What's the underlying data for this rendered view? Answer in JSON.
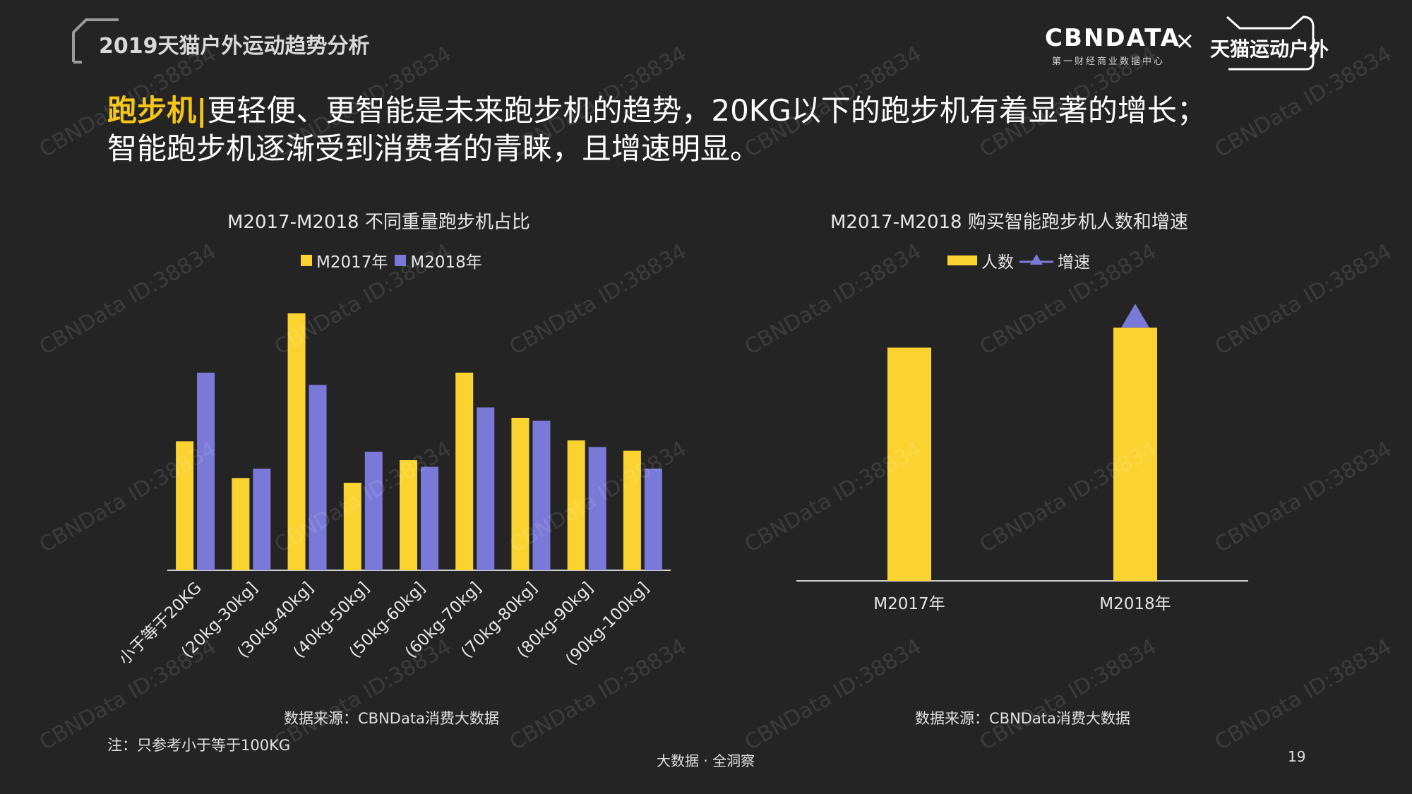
{
  "header": {
    "report_title": "2019天猫户外运动趋势分析",
    "headline_keyword": "跑步机|",
    "headline_line1": "更轻便、更智能是未来跑步机的趋势，20KG以下的跑步机有着显著的增长；",
    "headline_line2": "智能跑步机逐渐受到消费者的青睐，且增速明显。",
    "logo_cbn": "CBNDATA",
    "logo_cbn_sub": "第一财经商业数据中心",
    "logo_separator": "×",
    "logo_tmall": "天猫运动户外"
  },
  "colors": {
    "yellow": "#FBD331",
    "purple": "#7B79D8",
    "accent_keyword": "#f5c518",
    "axis": "#cfcfcf"
  },
  "chart_data": [
    {
      "type": "bar",
      "title": "M2017-M2018 不同重量跑步机占比",
      "categories": [
        "小于等于20KG",
        "(20kg-30kg]",
        "(30kg-40kg]",
        "(40kg-50kg]",
        "(50kg-60kg]",
        "(60kg-70kg]",
        "(70kg-80kg]",
        "(80kg-90kg]",
        "(90kg-100kg]"
      ],
      "series": [
        {
          "name": "M2017年",
          "color": "#FBD331",
          "values": [
            0.137,
            0.098,
            0.273,
            0.093,
            0.117,
            0.21,
            0.162,
            0.138,
            0.127
          ]
        },
        {
          "name": "M2018年",
          "color": "#7B79D8",
          "values": [
            0.21,
            0.108,
            0.197,
            0.126,
            0.11,
            0.173,
            0.159,
            0.131,
            0.108
          ]
        }
      ],
      "ylim": [
        0,
        0.3
      ],
      "grid": false,
      "legend_position": "top-center",
      "source": "数据来源：CBNData消费大数据"
    },
    {
      "type": "bar",
      "title": "M2017-M2018 购买智能跑步机人数和增速",
      "categories": [
        "M2017年",
        "M2018年"
      ],
      "series": [
        {
          "name": "人数",
          "color": "#FBD331",
          "values": [
            0.82,
            0.89
          ]
        },
        {
          "name": "增速",
          "color": "#7B79D8",
          "marker": "triangle",
          "values": [
            null,
            0.92
          ]
        }
      ],
      "ylim": [
        0,
        1
      ],
      "grid": false,
      "legend_position": "top-center",
      "source": "数据来源：CBNData消费大数据"
    }
  ],
  "footer": {
    "note": "注：只参考小于等于100KG",
    "slogan": "大数据 · 全洞察",
    "page_number": "19"
  },
  "watermark": "CBNData ID:38834"
}
